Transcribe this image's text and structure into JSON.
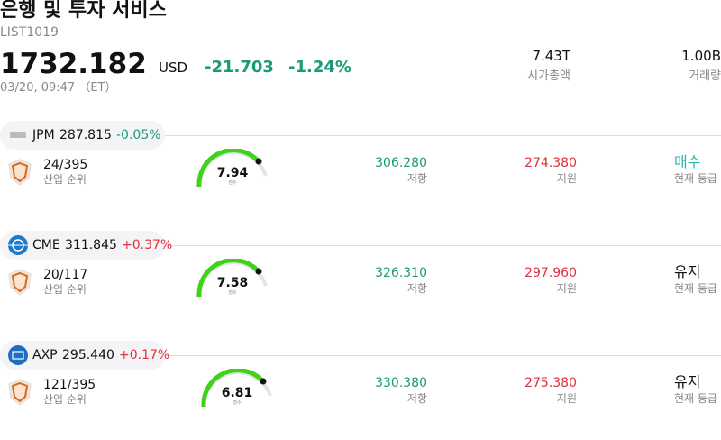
{
  "header": {
    "title": "은행 및 투자 서비스",
    "code": "LIST1019",
    "price": "1732.182",
    "currency": "USD",
    "change": "-21.703",
    "change_pct": "-1.24%",
    "time": "03/20, 09:47 （ET）"
  },
  "stats": [
    {
      "value": "7.43T",
      "label": "시가총액"
    },
    {
      "value": "1.00B",
      "label": "거래량"
    }
  ],
  "stocks": [
    {
      "ticker": "JPM",
      "price": "287.815",
      "change": "-0.05%",
      "rank": "24/395",
      "rank_label": "산업 순위",
      "score": "7.94",
      "score_label": "점수",
      "resistance": "306.280",
      "resistance_label": "저항",
      "support": "274.380",
      "support_label": "지원",
      "rating": "매수",
      "rating_label": "현재 등급",
      "rating_color": "#2bb5b0"
    },
    {
      "ticker": "CME",
      "price": "311.845",
      "change": "+0.37%",
      "rank": "20/117",
      "rank_label": "산업 순위",
      "score": "7.58",
      "score_label": "점수",
      "resistance": "326.310",
      "resistance_label": "저항",
      "support": "297.960",
      "support_label": "지원",
      "rating": "유지",
      "rating_label": "현재 등급",
      "rating_color": "#111111"
    },
    {
      "ticker": "AXP",
      "price": "295.440",
      "change": "+0.17%",
      "rank": "121/395",
      "rank_label": "산업 순위",
      "score": "6.81",
      "score_label": "점수",
      "resistance": "330.380",
      "resistance_label": "저항",
      "support": "275.380",
      "support_label": "지원",
      "rating": "유지",
      "rating_label": "현재 등급",
      "rating_color": "#111111"
    }
  ]
}
